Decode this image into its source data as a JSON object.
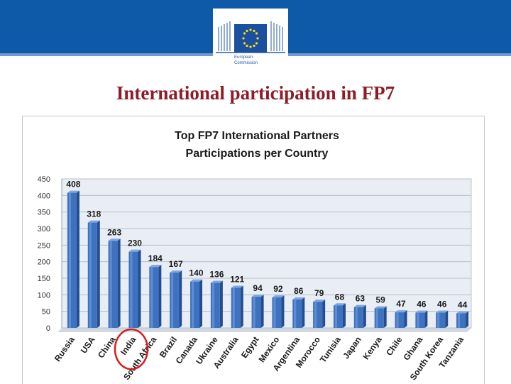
{
  "header": {
    "logo_text_line1": "European",
    "logo_text_line2": "Commission",
    "brand_color": "#0f5aa8",
    "stripe_color": "#6d9bd0"
  },
  "slide": {
    "title": "International participation in FP7",
    "title_color": "#8c1c26"
  },
  "chart_data": {
    "type": "bar",
    "title": "Top FP7 International Partners",
    "subtitle": "Participations per Country",
    "categories": [
      "Russia",
      "USA",
      "China",
      "India",
      "South Africa",
      "Brazil",
      "Canada",
      "Ukraine",
      "Australia",
      "Egypt",
      "Mexico",
      "Argentina",
      "Morocco",
      "Tunisia",
      "Japan",
      "Kenya",
      "Chile",
      "Ghana",
      "South Korea",
      "Tanzania"
    ],
    "values": [
      408,
      318,
      263,
      230,
      184,
      167,
      140,
      136,
      121,
      94,
      92,
      86,
      79,
      68,
      63,
      59,
      47,
      46,
      46,
      44
    ],
    "ylim": [
      0,
      450
    ],
    "yticks": [
      0,
      50,
      100,
      150,
      200,
      250,
      300,
      350,
      400,
      450
    ],
    "grid": true,
    "legend": "none",
    "bar_color": "#3d72c0",
    "highlighted_category": "India",
    "highlight_color": "#d21f1f"
  }
}
